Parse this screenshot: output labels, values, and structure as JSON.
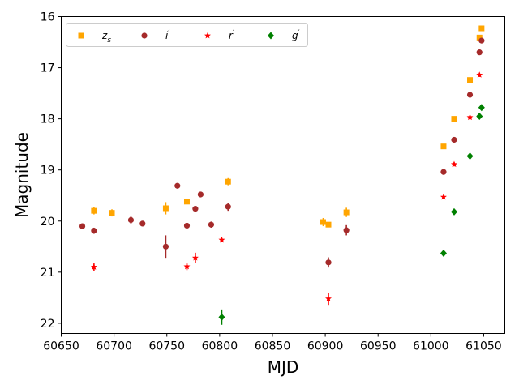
{
  "chart_data": {
    "type": "scatter",
    "title": "",
    "xlabel": "MJD",
    "ylabel": "Magnitude",
    "xlim": [
      60650,
      61070
    ],
    "ylim": [
      22.2,
      16.0
    ],
    "y_inverted": true,
    "grid": false,
    "legend_placement": "top-left",
    "legend_columns": 4,
    "x_ticks": [
      "60650",
      "60700",
      "60750",
      "60800",
      "60850",
      "60900",
      "60950",
      "61000",
      "61050"
    ],
    "y_ticks": [
      "16",
      "17",
      "18",
      "19",
      "20",
      "21",
      "22"
    ],
    "series": [
      {
        "name": "z_s",
        "legend_label": "z",
        "legend_sub": "s",
        "marker": "square",
        "color": "#FFA500",
        "points": [
          {
            "x": 60681,
            "y": 19.8,
            "err": 0.07
          },
          {
            "x": 60698,
            "y": 19.84,
            "err": 0.07
          },
          {
            "x": 60749,
            "y": 19.75,
            "err": 0.12
          },
          {
            "x": 60769,
            "y": 19.62,
            "err": 0.05
          },
          {
            "x": 60808,
            "y": 19.23,
            "err": 0.07
          },
          {
            "x": 60898,
            "y": 20.02,
            "err": 0.08
          },
          {
            "x": 60903,
            "y": 20.07,
            "err": 0.05
          },
          {
            "x": 60920,
            "y": 19.83,
            "err": 0.09
          },
          {
            "x": 61012,
            "y": 18.54,
            "err": 0.04
          },
          {
            "x": 61022,
            "y": 18.0,
            "err": 0.04
          },
          {
            "x": 61037,
            "y": 17.24,
            "err": 0.04
          },
          {
            "x": 61046,
            "y": 16.41,
            "err": 0.04
          },
          {
            "x": 61048,
            "y": 16.23,
            "err": 0.04
          }
        ]
      },
      {
        "name": "i'",
        "legend_label": "i",
        "legend_sub": "",
        "marker": "circle",
        "color": "#A52A2A",
        "points": [
          {
            "x": 60670,
            "y": 20.1,
            "err": 0.05
          },
          {
            "x": 60681,
            "y": 20.19,
            "err": 0.06
          },
          {
            "x": 60716,
            "y": 19.98,
            "err": 0.08
          },
          {
            "x": 60727,
            "y": 20.05,
            "err": 0.05
          },
          {
            "x": 60749,
            "y": 20.5,
            "err": 0.22
          },
          {
            "x": 60760,
            "y": 19.31,
            "err": 0.04
          },
          {
            "x": 60769,
            "y": 20.09,
            "err": 0.04
          },
          {
            "x": 60777,
            "y": 19.76,
            "err": 0.04
          },
          {
            "x": 60782,
            "y": 19.48,
            "err": 0.04
          },
          {
            "x": 60792,
            "y": 20.07,
            "err": 0.06
          },
          {
            "x": 60808,
            "y": 19.72,
            "err": 0.08
          },
          {
            "x": 60903,
            "y": 20.81,
            "err": 0.1
          },
          {
            "x": 60920,
            "y": 20.18,
            "err": 0.1
          },
          {
            "x": 61012,
            "y": 19.04,
            "err": 0.04
          },
          {
            "x": 61022,
            "y": 18.41,
            "err": 0.04
          },
          {
            "x": 61037,
            "y": 17.53,
            "err": 0.04
          },
          {
            "x": 61046,
            "y": 16.7,
            "err": 0.04
          },
          {
            "x": 61048,
            "y": 16.47,
            "err": 0.04
          }
        ]
      },
      {
        "name": "r'",
        "legend_label": "r",
        "legend_sub": "",
        "marker": "star",
        "color": "#FF0000",
        "points": [
          {
            "x": 60681,
            "y": 20.9,
            "err": 0.07
          },
          {
            "x": 60769,
            "y": 20.89,
            "err": 0.07
          },
          {
            "x": 60777,
            "y": 20.72,
            "err": 0.1
          },
          {
            "x": 60802,
            "y": 20.37,
            "err": 0.04
          },
          {
            "x": 60903,
            "y": 21.52,
            "err": 0.12
          },
          {
            "x": 61012,
            "y": 19.53,
            "err": 0.04
          },
          {
            "x": 61022,
            "y": 18.89,
            "err": 0.04
          },
          {
            "x": 61037,
            "y": 17.97,
            "err": 0.04
          },
          {
            "x": 61046,
            "y": 17.14,
            "err": 0.04
          }
        ]
      },
      {
        "name": "g'",
        "legend_label": "g",
        "legend_sub": "",
        "marker": "diamond",
        "color": "#008000",
        "points": [
          {
            "x": 60802,
            "y": 21.88,
            "err": 0.15
          },
          {
            "x": 61012,
            "y": 20.63,
            "err": 0.04
          },
          {
            "x": 61022,
            "y": 19.82,
            "err": 0.04
          },
          {
            "x": 61037,
            "y": 18.73,
            "err": 0.04
          },
          {
            "x": 61046,
            "y": 17.95,
            "err": 0.04
          },
          {
            "x": 61048,
            "y": 17.78,
            "err": 0.04
          }
        ]
      }
    ]
  }
}
